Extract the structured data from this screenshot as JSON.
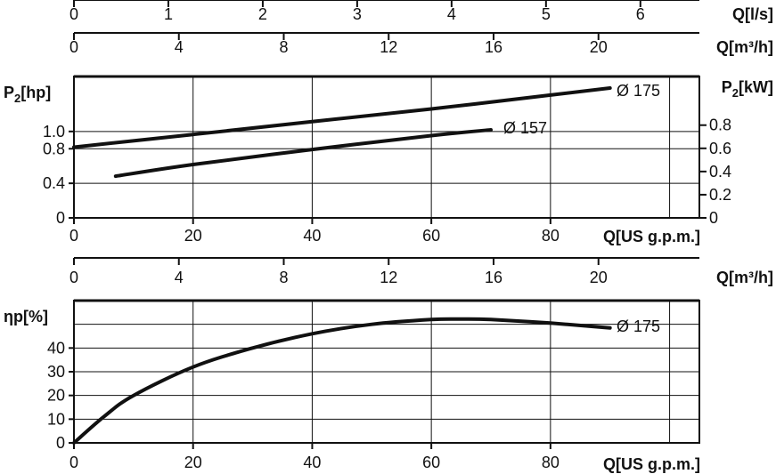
{
  "chart_data": [
    {
      "type": "line",
      "top_axes": [
        {
          "unit": "Q[l/s]",
          "ticks": [
            "0",
            "1",
            "2",
            "3",
            "4",
            "5",
            "6"
          ],
          "range": [
            0,
            6
          ],
          "scale_to_us_gpm": 15.85
        },
        {
          "unit": "Q[m³/h]",
          "ticks": [
            "0",
            "4",
            "8",
            "12",
            "16",
            "20"
          ],
          "range": [
            0,
            20
          ],
          "scale_to_us_gpm": 4.403
        }
      ],
      "xlabel": "Q[US g.p.m.]",
      "x_ticks": [
        "0",
        "20",
        "40",
        "60",
        "80"
      ],
      "xlim": [
        0,
        105
      ],
      "ylabel_left": "P₂[hp]",
      "y_left_ticks": [
        "0",
        "0.4",
        "0.8",
        "1.0"
      ],
      "ylabel_right": "P₂[kW]",
      "y_right_ticks": [
        "0",
        "0.2",
        "0.4",
        "0.6",
        "0.8"
      ],
      "ylim_kw": [
        0,
        1.22
      ],
      "grid": true,
      "series": [
        {
          "name": "Ø 175",
          "x": [
            0,
            20,
            40,
            60,
            80,
            90
          ],
          "y_kw": [
            0.61,
            0.72,
            0.83,
            0.94,
            1.06,
            1.12
          ]
        },
        {
          "name": "Ø 157",
          "x": [
            7,
            20,
            40,
            60,
            70
          ],
          "y_kw": [
            0.36,
            0.46,
            0.59,
            0.71,
            0.76
          ]
        }
      ]
    },
    {
      "type": "line",
      "top_axes": [
        {
          "unit": "Q[m³/h]",
          "ticks": [
            "0",
            "4",
            "8",
            "12",
            "16",
            "20"
          ],
          "range": [
            0,
            20
          ],
          "scale_to_us_gpm": 4.403
        }
      ],
      "xlabel": "Q[US g.p.m.]",
      "x_ticks": [
        "0",
        "20",
        "40",
        "60",
        "80"
      ],
      "xlim": [
        0,
        105
      ],
      "ylabel": "ηp[%]",
      "y_ticks": [
        "0",
        "10",
        "20",
        "30",
        "40"
      ],
      "ylim": [
        0,
        60
      ],
      "grid": true,
      "series": [
        {
          "name": "Ø 175",
          "x": [
            0,
            5,
            10,
            20,
            30,
            40,
            50,
            60,
            65,
            70,
            80,
            90
          ],
          "y": [
            0,
            11,
            20,
            32,
            40,
            46,
            50,
            52,
            52.2,
            52,
            50.5,
            48.5
          ]
        }
      ]
    }
  ]
}
